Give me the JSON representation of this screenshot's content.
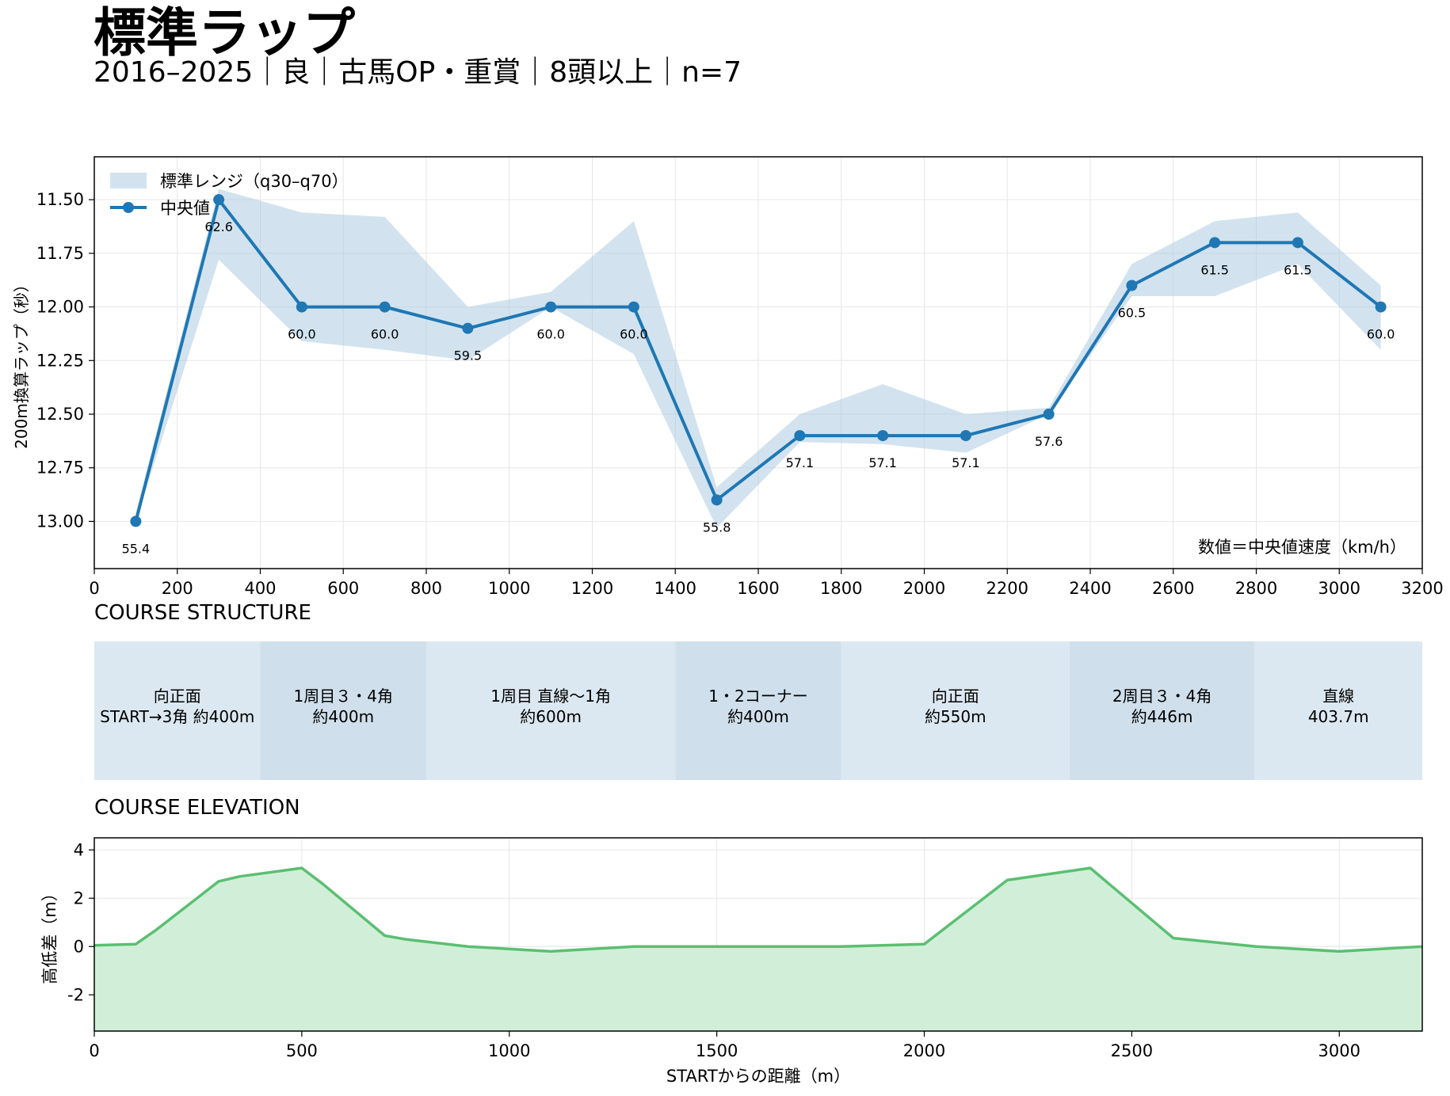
{
  "header": {
    "title": "標準ラップ",
    "subtitle": "2016–2025｜良｜古馬OP・重賞｜8頭以上｜n=7"
  },
  "chart_data": [
    {
      "type": "line",
      "panel": "lap",
      "x": [
        100,
        300,
        500,
        700,
        900,
        1100,
        1300,
        1500,
        1700,
        1900,
        2100,
        2300,
        2500,
        2700,
        2900,
        3100
      ],
      "series": [
        {
          "name": "中央値",
          "values": [
            13.0,
            11.5,
            12.0,
            12.0,
            12.1,
            12.0,
            12.0,
            12.9,
            12.6,
            12.6,
            12.6,
            12.5,
            11.9,
            11.7,
            11.7,
            12.0
          ],
          "data_labels": [
            "55.4",
            "62.6",
            "60.0",
            "60.0",
            "59.5",
            "60.0",
            "60.0",
            "55.8",
            "57.1",
            "57.1",
            "57.1",
            "57.6",
            "60.5",
            "61.5",
            "61.5",
            "60.0"
          ],
          "color": "#1f77b4"
        },
        {
          "name": "標準レンジ（q30–q70）",
          "type": "band",
          "lower": [
            12.96,
            11.45,
            11.56,
            11.58,
            12.0,
            11.93,
            11.6,
            12.84,
            12.5,
            12.36,
            12.5,
            12.47,
            11.8,
            11.6,
            11.56,
            11.9
          ],
          "upper": [
            13.0,
            11.78,
            12.16,
            12.2,
            12.25,
            12.0,
            12.22,
            13.03,
            12.63,
            12.64,
            12.68,
            12.5,
            11.95,
            11.95,
            11.8,
            12.2
          ],
          "color": "#a6c8e0"
        }
      ],
      "xlim": [
        0,
        3200
      ],
      "ylim": [
        13.22,
        11.3
      ],
      "y_inverted": true,
      "xticks": [
        0,
        200,
        400,
        600,
        800,
        1000,
        1200,
        1400,
        1600,
        1800,
        2000,
        2200,
        2400,
        2600,
        2800,
        3000,
        3200
      ],
      "yticks": [
        "11.50",
        "11.75",
        "12.00",
        "12.25",
        "12.50",
        "12.75",
        "13.00"
      ],
      "ylabel": "200m換算ラップ（秒）",
      "annotation": "数値＝中央値速度（km/h）",
      "grid": true,
      "legend_placement": "top-left"
    },
    {
      "type": "table",
      "panel": "structure",
      "title": "COURSE STRUCTURE",
      "segments": [
        {
          "start": 0,
          "end": 400,
          "line1": "向正面",
          "line2": "START→3角 約400m",
          "shade": "#dce8f1"
        },
        {
          "start": 400,
          "end": 800,
          "line1": "1周目３・4角",
          "line2": "約400m",
          "shade": "#cfdfeb"
        },
        {
          "start": 800,
          "end": 1400,
          "line1": "1周目 直線〜1角",
          "line2": "約600m",
          "shade": "#dce8f1"
        },
        {
          "start": 1400,
          "end": 1800,
          "line1": "1・2コーナー",
          "line2": "約400m",
          "shade": "#cfdfeb"
        },
        {
          "start": 1800,
          "end": 2350,
          "line1": "向正面",
          "line2": "約550m",
          "shade": "#dce8f1"
        },
        {
          "start": 2350,
          "end": 2796,
          "line1": "2周目３・4角",
          "line2": "約446m",
          "shade": "#cfdfeb"
        },
        {
          "start": 2796,
          "end": 3200,
          "line1": "直線",
          "line2": "403.7m",
          "shade": "#dce8f1"
        }
      ]
    },
    {
      "type": "area",
      "panel": "elevation",
      "title": "COURSE ELEVATION",
      "x": [
        0,
        100,
        150,
        300,
        350,
        500,
        550,
        700,
        750,
        900,
        1100,
        1300,
        1500,
        1800,
        2000,
        2200,
        2400,
        2600,
        2800,
        3000,
        3200
      ],
      "values": [
        0.05,
        0.1,
        0.7,
        2.7,
        2.9,
        3.25,
        2.6,
        0.45,
        0.3,
        0.0,
        -0.2,
        0.0,
        0.0,
        0.0,
        0.1,
        2.75,
        3.25,
        0.35,
        0.0,
        -0.2,
        0.0
      ],
      "color": "#5bbf72",
      "fill": "#cfeed6",
      "xlim": [
        0,
        3200
      ],
      "ylim": [
        -3.5,
        4.5
      ],
      "xticks": [
        0,
        500,
        1000,
        1500,
        2000,
        2500,
        3000
      ],
      "yticks": [
        4,
        2,
        0,
        -2
      ],
      "xlabel": "STARTからの距離（m）",
      "ylabel": "高低差（m）",
      "grid": true
    }
  ]
}
